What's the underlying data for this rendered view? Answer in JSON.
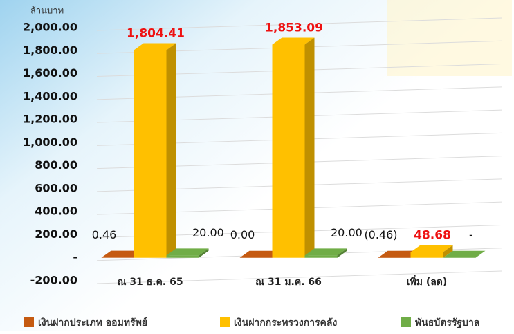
{
  "chart_data": {
    "type": "bar3d",
    "y_axis_label": "ล้านบาท",
    "categories": [
      "ณ 31 ธ.ค. 65",
      "ณ 31 ม.ค. 66",
      "เพิ่ม (ลด)"
    ],
    "series": [
      {
        "name": "เงินฝากประเภท ออมทรัพย์",
        "color": "#c55a11",
        "values": [
          0.46,
          0,
          -0.46
        ],
        "value_labels": [
          "0.46",
          "0.00",
          "(0.46)"
        ]
      },
      {
        "name": "เงินฝากกระทรวงการคลัง",
        "color": "#ffc000",
        "values": [
          1804.41,
          1853.09,
          48.68
        ],
        "value_labels": [
          "1,804.41",
          "1,853.09",
          "48.68"
        ]
      },
      {
        "name": "พันธบัตรรัฐบาล",
        "color": "#70ad47",
        "values": [
          20,
          20,
          0
        ],
        "value_labels": [
          "20.00",
          "20.00",
          "-"
        ]
      }
    ],
    "ylim": [
      -200,
      2000
    ],
    "yticks": [
      {
        "value": -200,
        "label": "-200.00"
      },
      {
        "value": 0,
        "label": "-"
      },
      {
        "value": 200,
        "label": "200.00"
      },
      {
        "value": 400,
        "label": "400.00"
      },
      {
        "value": 600,
        "label": "600.00"
      },
      {
        "value": 800,
        "label": "800.00"
      },
      {
        "value": 1000,
        "label": "1,000.00"
      },
      {
        "value": 1200,
        "label": "1,200.00"
      },
      {
        "value": 1400,
        "label": "1,400.00"
      },
      {
        "value": 1600,
        "label": "1,600.00"
      },
      {
        "value": 1800,
        "label": "1,800.00"
      },
      {
        "value": 2000,
        "label": "2,000.00"
      }
    ],
    "grid": true,
    "legend": "bottom"
  }
}
